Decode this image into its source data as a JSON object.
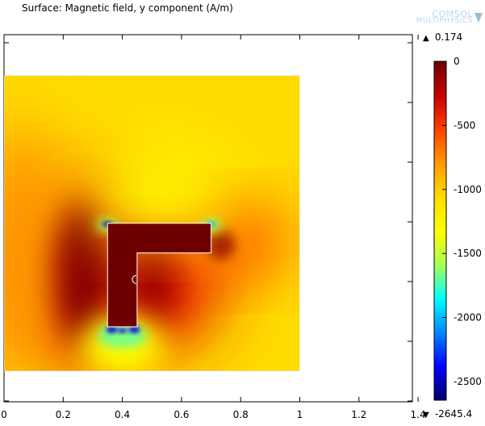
{
  "plot": {
    "title": "Surface: Magnetic field, y component (A/m)"
  },
  "logo": {
    "line1": "COMSOL",
    "line2": "MULTIPHYSICS"
  },
  "colorbar": {
    "max_label": "0.174",
    "min_label": "-2645.4",
    "max_marker": "▲",
    "min_marker": "▼",
    "top_value": 0,
    "bottom_value": -2645.4,
    "ticks": [
      {
        "value": 0,
        "label": "0"
      },
      {
        "value": -500,
        "label": "-500"
      },
      {
        "value": -1000,
        "label": "-1000"
      },
      {
        "value": -1500,
        "label": "-1500"
      },
      {
        "value": -2000,
        "label": "-2000"
      },
      {
        "value": -2500,
        "label": "-2500"
      }
    ],
    "colormap": [
      "#6e0000",
      "#c80000",
      "#ff4000",
      "#ff9900",
      "#ffdd00",
      "#ffff00",
      "#a8ff55",
      "#00ffff",
      "#0088ff",
      "#0000ff",
      "#00006e"
    ]
  },
  "chart_data": {
    "type": "heatmap",
    "title": "Surface: Magnetic field, y component (A/m)",
    "quantity": "Magnetic field, y component",
    "unit": "A/m",
    "x_ticks": [
      0,
      0.2,
      0.4,
      0.6,
      0.8,
      1,
      1.2,
      1.4
    ],
    "x_tick_labels": [
      "0",
      "0.2",
      "0.4",
      "0.6",
      "0.8",
      "1",
      "1.2",
      "1.4"
    ],
    "xlim": [
      0,
      1.4
    ],
    "domain": {
      "x": [
        0,
        1
      ],
      "y": [
        0,
        1
      ]
    },
    "magnet_outline": [
      [
        0.35,
        0.15
      ],
      [
        0.45,
        0.15
      ],
      [
        0.45,
        0.4
      ],
      [
        0.7,
        0.4
      ],
      [
        0.7,
        0.5
      ],
      [
        0.35,
        0.5
      ]
    ],
    "color_range": [
      -2645.4,
      0.174
    ],
    "field_summary": {
      "background": -1050,
      "magnet_interior": 0,
      "min": -2645.4,
      "max": 0.174
    },
    "notable_regions": [
      {
        "label": "upper-left corner of magnet",
        "x": 0.35,
        "y": 0.5,
        "value": -2500
      },
      {
        "label": "upper-right corner of magnet",
        "x": 0.7,
        "y": 0.5,
        "value": -2000
      },
      {
        "label": "bottom of magnet leg",
        "x": 0.4,
        "y": 0.14,
        "value": -2400
      },
      {
        "label": "left of magnet leg",
        "x": 0.28,
        "y": 0.33,
        "value": -150
      },
      {
        "label": "right of arm tip",
        "x": 0.74,
        "y": 0.44,
        "value": -250
      }
    ]
  }
}
